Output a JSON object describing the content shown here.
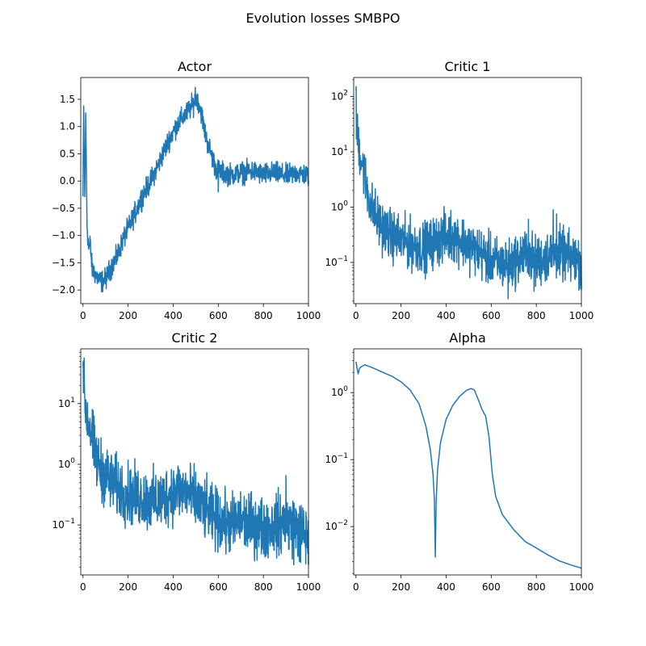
{
  "figure": {
    "title": "Evolution losses SMBPO"
  },
  "chart_data": [
    {
      "type": "line",
      "title": "Actor",
      "scale": "linear",
      "xlim": [
        -10,
        1000
      ],
      "ylim": [
        -2.25,
        1.9
      ],
      "xticks": [
        0,
        200,
        400,
        600,
        800,
        1000
      ],
      "yticks": [
        -2.0,
        -1.5,
        -1.0,
        -0.5,
        0.0,
        0.5,
        1.0,
        1.5
      ],
      "ytick_labels": [
        "−2.0",
        "−1.5",
        "−1.0",
        "−0.5",
        "0.0",
        "0.5",
        "1.0",
        "1.5"
      ],
      "color": "#1f77b4",
      "anchors": [
        [
          0,
          -0.3
        ],
        [
          3,
          1.35
        ],
        [
          8,
          -0.3
        ],
        [
          12,
          1.2
        ],
        [
          18,
          -0.8
        ],
        [
          25,
          -1.25
        ],
        [
          32,
          -1.15
        ],
        [
          40,
          -1.6
        ],
        [
          60,
          -1.75
        ],
        [
          80,
          -1.85
        ],
        [
          100,
          -1.8
        ],
        [
          120,
          -1.62
        ],
        [
          150,
          -1.4
        ],
        [
          180,
          -1.05
        ],
        [
          220,
          -0.7
        ],
        [
          260,
          -0.3
        ],
        [
          300,
          0.0
        ],
        [
          340,
          0.35
        ],
        [
          380,
          0.75
        ],
        [
          420,
          1.05
        ],
        [
          460,
          1.25
        ],
        [
          490,
          1.42
        ],
        [
          505,
          1.55
        ],
        [
          525,
          1.25
        ],
        [
          545,
          0.8
        ],
        [
          565,
          0.55
        ],
        [
          590,
          0.22
        ],
        [
          620,
          0.15
        ],
        [
          660,
          0.12
        ],
        [
          700,
          0.15
        ],
        [
          750,
          0.18
        ],
        [
          800,
          0.12
        ],
        [
          850,
          0.15
        ],
        [
          900,
          0.1
        ],
        [
          950,
          0.15
        ],
        [
          1000,
          0.1
        ]
      ],
      "noise": 0.14,
      "spikes": [
        [
          3,
          1.38
        ],
        [
          12,
          1.25
        ],
        [
          498,
          1.72
        ],
        [
          508,
          1.6
        ],
        [
          600,
          -0.2
        ]
      ],
      "log_noise": false
    },
    {
      "type": "line",
      "title": "Critic 1",
      "scale": "log",
      "xlim": [
        -10,
        1000
      ],
      "ylim": [
        0.018,
        220
      ],
      "xticks": [
        0,
        200,
        400,
        600,
        800,
        1000
      ],
      "yticks": [
        0.1,
        1,
        10,
        100
      ],
      "ytick_labels": [
        "10^-1",
        "10^0",
        "10^1",
        "10^2"
      ],
      "color": "#1f77b4",
      "anchors": [
        [
          0,
          45
        ],
        [
          5,
          20
        ],
        [
          15,
          12
        ],
        [
          25,
          7
        ],
        [
          40,
          3.5
        ],
        [
          55,
          1.6
        ],
        [
          70,
          1.0
        ],
        [
          90,
          0.65
        ],
        [
          120,
          0.42
        ],
        [
          160,
          0.3
        ],
        [
          200,
          0.25
        ],
        [
          260,
          0.2
        ],
        [
          300,
          0.18
        ],
        [
          340,
          0.22
        ],
        [
          380,
          0.28
        ],
        [
          420,
          0.3
        ],
        [
          460,
          0.27
        ],
        [
          500,
          0.2
        ],
        [
          540,
          0.16
        ],
        [
          580,
          0.12
        ],
        [
          620,
          0.1
        ],
        [
          680,
          0.09
        ],
        [
          720,
          0.12
        ],
        [
          760,
          0.14
        ],
        [
          800,
          0.1
        ],
        [
          850,
          0.13
        ],
        [
          900,
          0.15
        ],
        [
          950,
          0.12
        ],
        [
          1000,
          0.1
        ]
      ],
      "noise": 0.32,
      "spikes": [
        [
          1,
          150
        ],
        [
          4,
          42
        ],
        [
          675,
          0.022
        ],
        [
          765,
          0.6
        ],
        [
          790,
          0.03
        ],
        [
          875,
          0.9
        ],
        [
          890,
          0.75
        ],
        [
          1000,
          0.032
        ]
      ],
      "log_noise": true
    },
    {
      "type": "line",
      "title": "Critic 2",
      "scale": "log",
      "xlim": [
        -10,
        1000
      ],
      "ylim": [
        0.015,
        80
      ],
      "xticks": [
        0,
        200,
        400,
        600,
        800,
        1000
      ],
      "yticks": [
        0.1,
        1,
        10
      ],
      "ytick_labels": [
        "10^-1",
        "10^0",
        "10^1"
      ],
      "color": "#1f77b4",
      "anchors": [
        [
          0,
          30
        ],
        [
          5,
          15
        ],
        [
          15,
          7
        ],
        [
          30,
          4
        ],
        [
          45,
          2.2
        ],
        [
          60,
          1.2
        ],
        [
          75,
          0.85
        ],
        [
          100,
          0.65
        ],
        [
          140,
          0.45
        ],
        [
          180,
          0.35
        ],
        [
          220,
          0.3
        ],
        [
          260,
          0.28
        ],
        [
          300,
          0.25
        ],
        [
          340,
          0.25
        ],
        [
          380,
          0.32
        ],
        [
          420,
          0.38
        ],
        [
          460,
          0.35
        ],
        [
          500,
          0.25
        ],
        [
          540,
          0.18
        ],
        [
          580,
          0.13
        ],
        [
          620,
          0.11
        ],
        [
          660,
          0.1
        ],
        [
          700,
          0.12
        ],
        [
          750,
          0.1
        ],
        [
          800,
          0.09
        ],
        [
          850,
          0.1
        ],
        [
          900,
          0.11
        ],
        [
          950,
          0.09
        ],
        [
          1000,
          0.06
        ]
      ],
      "noise": 0.35,
      "spikes": [
        [
          1,
          50
        ],
        [
          4,
          20
        ],
        [
          900,
          0.65
        ],
        [
          935,
          0.022
        ],
        [
          960,
          0.025
        ],
        [
          1000,
          0.022
        ]
      ],
      "log_noise": true
    },
    {
      "type": "line",
      "title": "Alpha",
      "scale": "log",
      "xlim": [
        -10,
        1000
      ],
      "ylim": [
        0.0019,
        4.5
      ],
      "xticks": [
        0,
        200,
        400,
        600,
        800,
        1000
      ],
      "yticks": [
        0.01,
        0.1,
        1
      ],
      "ytick_labels": [
        "10^-2",
        "10^-1",
        "10^0"
      ],
      "color": "#1f77b4",
      "anchors": [
        [
          0,
          2.9
        ],
        [
          5,
          2.3
        ],
        [
          10,
          1.9
        ],
        [
          15,
          2.3
        ],
        [
          25,
          2.45
        ],
        [
          40,
          2.6
        ],
        [
          80,
          2.3
        ],
        [
          120,
          2.0
        ],
        [
          160,
          1.75
        ],
        [
          200,
          1.45
        ],
        [
          240,
          1.1
        ],
        [
          280,
          0.68
        ],
        [
          310,
          0.32
        ],
        [
          330,
          0.14
        ],
        [
          342,
          0.06
        ],
        [
          348,
          0.025
        ],
        [
          352,
          0.0035
        ],
        [
          356,
          0.025
        ],
        [
          362,
          0.07
        ],
        [
          375,
          0.18
        ],
        [
          400,
          0.4
        ],
        [
          430,
          0.65
        ],
        [
          460,
          0.88
        ],
        [
          490,
          1.08
        ],
        [
          510,
          1.15
        ],
        [
          525,
          1.1
        ],
        [
          545,
          0.75
        ],
        [
          560,
          0.55
        ],
        [
          575,
          0.45
        ],
        [
          590,
          0.22
        ],
        [
          605,
          0.06
        ],
        [
          620,
          0.028
        ],
        [
          650,
          0.015
        ],
        [
          700,
          0.009
        ],
        [
          750,
          0.006
        ],
        [
          800,
          0.0048
        ],
        [
          850,
          0.0038
        ],
        [
          900,
          0.0031
        ],
        [
          950,
          0.0027
        ],
        [
          1000,
          0.0024
        ]
      ],
      "noise": 0,
      "spikes": [],
      "log_noise": false
    }
  ]
}
